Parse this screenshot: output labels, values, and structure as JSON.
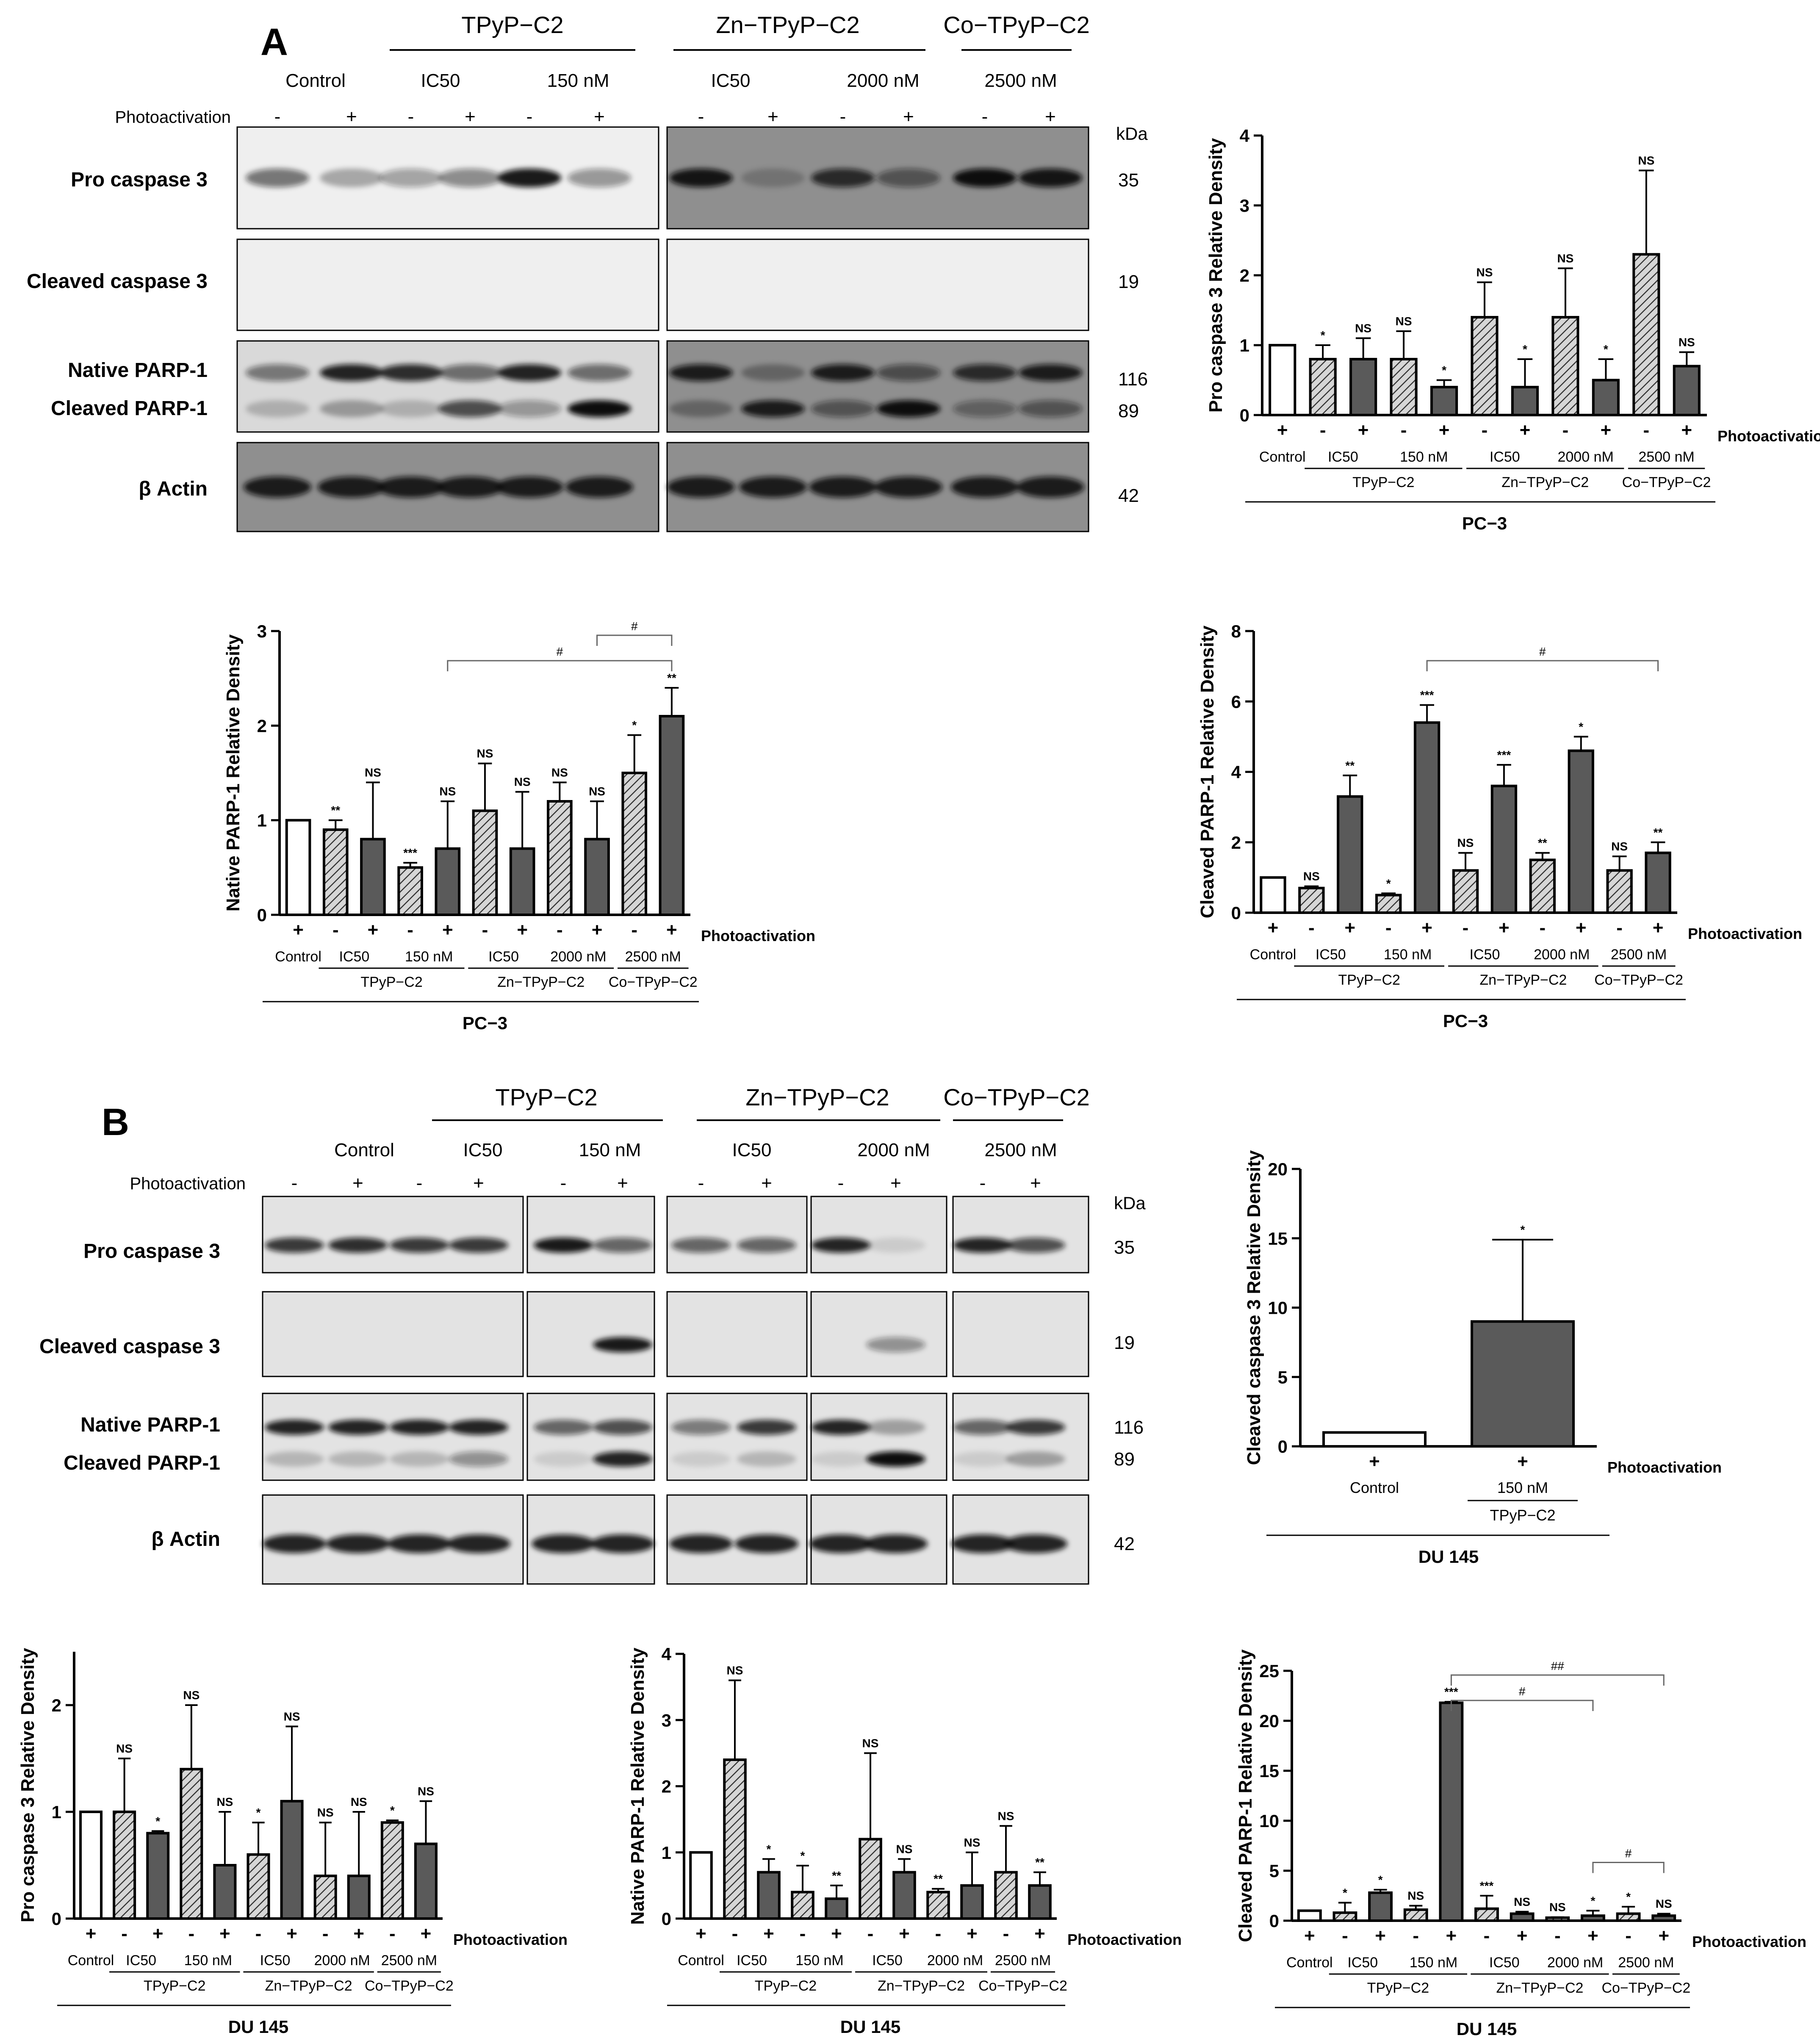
{
  "panel_a": {
    "letter": "A",
    "top_groups": [
      "TPyP−C2",
      "Zn−TPyP−C2",
      "Co−TPyP−C2"
    ],
    "doses": [
      "Control",
      "IC50",
      "150 nM",
      "IC50",
      "2000 nM",
      "2500 nM"
    ],
    "photo_label": "Photoactivation",
    "photo_signs": [
      "-",
      "+",
      "-",
      "+",
      "-",
      "+",
      "-",
      "+",
      "-",
      "+",
      "-",
      "+"
    ],
    "kda_header": "kDa",
    "rows": [
      {
        "label": "Pro caspase 3",
        "kda": "35"
      },
      {
        "label": "Cleaved caspase 3",
        "kda": "19"
      },
      {
        "label": "Native PARP-1",
        "kda": "116"
      },
      {
        "label": "Cleaved PARP-1",
        "kda": "89"
      },
      {
        "label": "β Actin",
        "kda": "42"
      }
    ]
  },
  "panel_b": {
    "letter": "B",
    "top_groups": [
      "TPyP−C2",
      "Zn−TPyP−C2",
      "Co−TPyP−C2"
    ],
    "doses": [
      "Control",
      "IC50",
      "150 nM",
      "IC50",
      "2000 nM",
      "2500 nM"
    ],
    "photo_label": "Photoactivation",
    "photo_signs": [
      "-",
      "+",
      "-",
      "+",
      "-",
      "+",
      "-",
      "+",
      "-",
      "+",
      "-",
      "+"
    ],
    "kda_header": "kDa",
    "rows": [
      {
        "label": "Pro caspase 3",
        "kda": "35"
      },
      {
        "label": "Cleaved caspase 3",
        "kda": "19"
      },
      {
        "label": "Native PARP-1",
        "kda": "116"
      },
      {
        "label": "Cleaved PARP-1",
        "kda": "89"
      },
      {
        "label": "β Actin",
        "kda": "42"
      }
    ]
  },
  "chart_data": [
    {
      "type": "bar",
      "ylabel": "Pro caspase 3 Relative Density",
      "cell_line": "PC−3",
      "ylim": [
        0,
        4
      ],
      "yticks": [
        0,
        1,
        2,
        3,
        4
      ],
      "photo_signs": [
        "+",
        "-",
        "+",
        "-",
        "+",
        "-",
        "+",
        "-",
        "+",
        "-",
        "+"
      ],
      "values": [
        1.0,
        0.8,
        0.8,
        0.8,
        0.4,
        1.4,
        0.4,
        1.4,
        0.5,
        2.3,
        0.7
      ],
      "errors": [
        0,
        0.2,
        0.3,
        0.4,
        0.1,
        0.5,
        0.4,
        0.7,
        0.3,
        1.2,
        0.2
      ],
      "marks": [
        "",
        "*",
        "NS",
        "NS",
        "*",
        "NS",
        "*",
        "NS",
        "*",
        "NS",
        "NS"
      ],
      "brackets": []
    },
    {
      "type": "bar",
      "ylabel": "Native PARP-1 Relative Density",
      "cell_line": "PC−3",
      "ylim": [
        0,
        3
      ],
      "yticks": [
        0,
        1,
        2,
        3
      ],
      "photo_signs": [
        "+",
        "-",
        "+",
        "-",
        "+",
        "-",
        "+",
        "-",
        "+",
        "-",
        "+"
      ],
      "values": [
        1.0,
        0.9,
        0.8,
        0.5,
        0.7,
        1.1,
        0.7,
        1.2,
        0.8,
        1.5,
        2.1
      ],
      "errors": [
        0,
        0.1,
        0.6,
        0.05,
        0.5,
        0.5,
        0.6,
        0.2,
        0.4,
        0.4,
        0.3
      ],
      "marks": [
        "",
        "**",
        "NS",
        "***",
        "NS",
        "NS",
        "NS",
        "NS",
        "NS",
        "*",
        "**"
      ],
      "brackets": [
        {
          "from": 4,
          "to": 10,
          "label": "#",
          "level": 0
        },
        {
          "from": 8,
          "to": 10,
          "label": "#",
          "level": 1
        }
      ]
    },
    {
      "type": "bar",
      "ylabel": "Cleaved PARP-1 Relative Density",
      "cell_line": "PC−3",
      "ylim": [
        0,
        8
      ],
      "yticks": [
        0,
        2,
        4,
        6,
        8
      ],
      "photo_signs": [
        "+",
        "-",
        "+",
        "-",
        "+",
        "-",
        "+",
        "-",
        "+",
        "-",
        "+"
      ],
      "values": [
        1.0,
        0.7,
        3.3,
        0.5,
        5.4,
        1.2,
        3.6,
        1.5,
        4.6,
        1.2,
        1.7
      ],
      "errors": [
        0,
        0.05,
        0.6,
        0.05,
        0.5,
        0.5,
        0.6,
        0.2,
        0.4,
        0.4,
        0.3
      ],
      "marks": [
        "",
        "NS",
        "**",
        "*",
        "***",
        "NS",
        "***",
        "**",
        "*",
        "NS",
        "**"
      ],
      "brackets": [
        {
          "from": 4,
          "to": 10,
          "label": "#",
          "level": 0
        }
      ]
    },
    {
      "type": "bar",
      "ylabel": "Cleaved caspase 3 Relative Density",
      "cell_line": "DU 145",
      "ylim": [
        0,
        20
      ],
      "yticks": [
        0,
        5,
        10,
        15,
        20
      ],
      "photo_signs": [
        "+",
        "+"
      ],
      "categories": [
        "Control",
        "150 nM"
      ],
      "group_label": "TPyP−C2",
      "values": [
        1.0,
        9.0
      ],
      "errors": [
        0,
        5.9
      ],
      "marks": [
        "",
        "*"
      ]
    },
    {
      "type": "bar",
      "ylabel": "Pro caspase 3 Relative Density",
      "cell_line": "DU 145",
      "ylim": [
        0,
        2.5
      ],
      "yticks": [
        0,
        1,
        2
      ],
      "photo_signs": [
        "+",
        "-",
        "+",
        "-",
        "+",
        "-",
        "+",
        "-",
        "+",
        "-",
        "+"
      ],
      "values": [
        1.0,
        1.0,
        0.8,
        1.4,
        0.5,
        0.6,
        1.1,
        0.4,
        0.4,
        0.9,
        0.7
      ],
      "errors": [
        0,
        0.5,
        0.02,
        0.6,
        0.5,
        0.3,
        0.7,
        0.5,
        0.6,
        0.02,
        0.4
      ],
      "marks": [
        "",
        "NS",
        "*",
        "NS",
        "NS",
        "*",
        "NS",
        "NS",
        "NS",
        "*",
        "NS"
      ],
      "brackets": []
    },
    {
      "type": "bar",
      "ylabel": "Native PARP-1 Relative Density",
      "cell_line": "DU 145",
      "ylim": [
        0,
        4
      ],
      "yticks": [
        0,
        1,
        2,
        3,
        4
      ],
      "photo_signs": [
        "+",
        "-",
        "+",
        "-",
        "+",
        "-",
        "+",
        "-",
        "+",
        "-",
        "+"
      ],
      "values": [
        1.0,
        2.4,
        0.7,
        0.4,
        0.3,
        1.2,
        0.7,
        0.4,
        0.5,
        0.7,
        0.5
      ],
      "errors": [
        0,
        1.2,
        0.2,
        0.4,
        0.2,
        1.3,
        0.2,
        0.05,
        0.5,
        0.7,
        0.2
      ],
      "marks": [
        "",
        "NS",
        "*",
        "*",
        "**",
        "NS",
        "NS",
        "**",
        "NS",
        "NS",
        "**"
      ],
      "brackets": []
    },
    {
      "type": "bar",
      "ylabel": "Cleaved PARP-1 Relative Density",
      "cell_line": "DU 145",
      "ylim": [
        0,
        25
      ],
      "yticks": [
        0,
        5,
        10,
        15,
        20,
        25
      ],
      "photo_signs": [
        "+",
        "-",
        "+",
        "-",
        "+",
        "-",
        "+",
        "-",
        "+",
        "-",
        "+"
      ],
      "values": [
        1.0,
        0.8,
        2.8,
        1.1,
        21.8,
        1.2,
        0.7,
        0.3,
        0.5,
        0.7,
        0.5
      ],
      "errors": [
        0,
        1.0,
        0.3,
        0.4,
        0.1,
        1.3,
        0.2,
        0.05,
        0.5,
        0.7,
        0.2
      ],
      "marks": [
        "",
        "*",
        "*",
        "NS",
        "***",
        "***",
        "NS",
        "NS",
        "*",
        "*",
        "NS"
      ],
      "brackets": [
        {
          "from": 4,
          "to": 10,
          "label": "##",
          "level": 1
        },
        {
          "from": 4,
          "to": 8,
          "label": "#",
          "level": 0
        },
        {
          "from": 8,
          "to": 10,
          "label": "#",
          "level": -1
        }
      ]
    }
  ],
  "chart_common": {
    "photo_label": "Photoactivation",
    "control_label": "Control",
    "dose_labels": [
      "IC50",
      "150 nM",
      "IC50",
      "2000 nM",
      "2500 nM"
    ],
    "group_labels": [
      "TPyP−C2",
      "Zn−TPyP−C2",
      "Co−TPyP−C2"
    ],
    "colors": {
      "control": "#ffffff",
      "hatched": "#bdbdbd",
      "solid": "#5a5a5a",
      "axis": "#000000"
    }
  }
}
